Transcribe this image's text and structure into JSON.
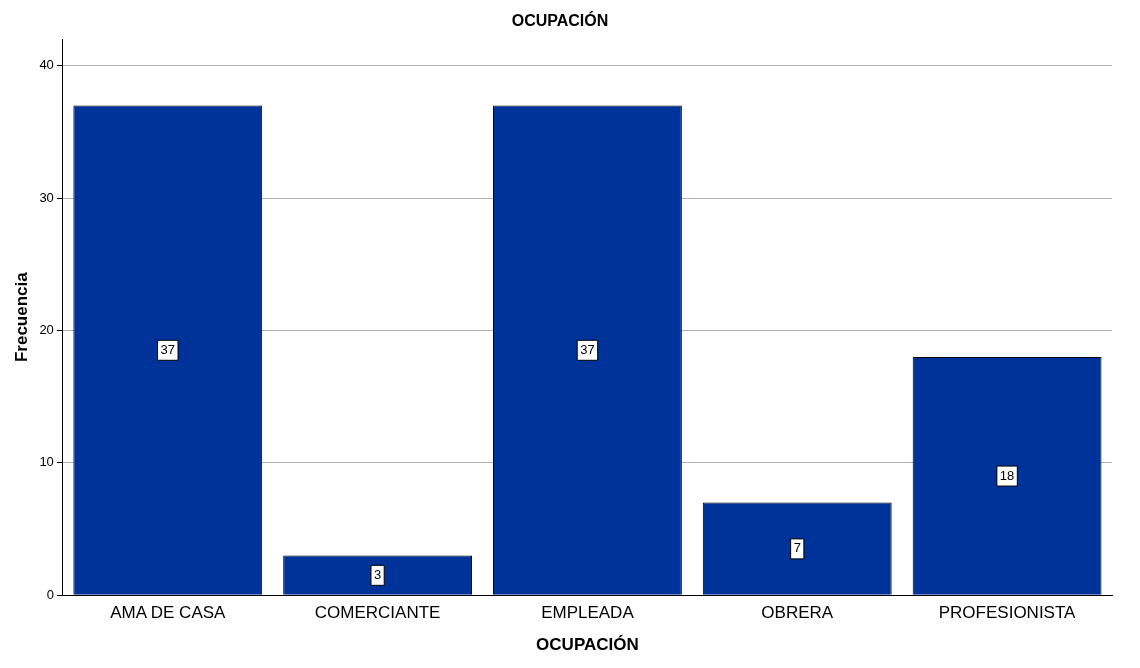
{
  "chart_data": {
    "type": "bar",
    "title": "OCUPACIÓN",
    "xlabel": "OCUPACIÓN",
    "ylabel": "Frecuencia",
    "categories": [
      "AMA DE CASA",
      "COMERCIANTE",
      "EMPLEADA",
      "OBRERA",
      "PROFESIONISTA"
    ],
    "values": [
      37,
      3,
      37,
      7,
      18
    ],
    "color": "#003399",
    "ylim": [
      0,
      42
    ],
    "yticks": [
      0,
      10,
      20,
      30,
      40
    ],
    "grid": "y",
    "data_labels": true
  }
}
